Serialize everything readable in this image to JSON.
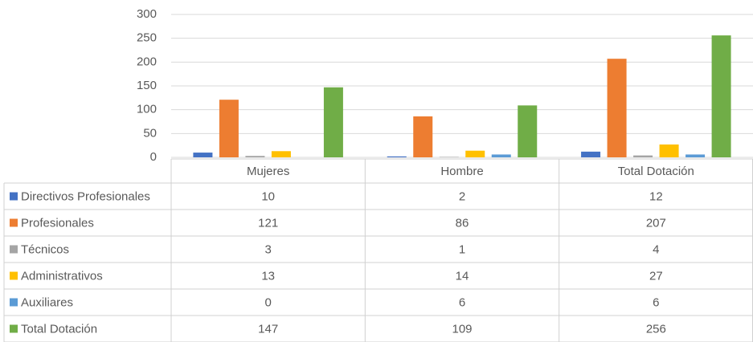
{
  "chart_data": {
    "type": "bar",
    "categories": [
      "Mujeres",
      "Hombre",
      "Total Dotación"
    ],
    "series": [
      {
        "name": "Directivos Profesionales",
        "color": "#4472c4",
        "values": [
          10,
          2,
          12
        ]
      },
      {
        "name": "Profesionales",
        "color": "#ed7d31",
        "values": [
          121,
          86,
          207
        ]
      },
      {
        "name": "Técnicos",
        "color": "#a5a5a5",
        "values": [
          3,
          1,
          4
        ]
      },
      {
        "name": "Administrativos",
        "color": "#ffc000",
        "values": [
          13,
          14,
          27
        ]
      },
      {
        "name": "Auxiliares",
        "color": "#5b9bd5",
        "values": [
          0,
          6,
          6
        ]
      },
      {
        "name": "Total Dotación",
        "color": "#70ad47",
        "values": [
          147,
          109,
          256
        ]
      }
    ],
    "ylim": [
      0,
      300
    ],
    "yticks": [
      0,
      50,
      100,
      150,
      200,
      250,
      300
    ],
    "grid": true
  }
}
